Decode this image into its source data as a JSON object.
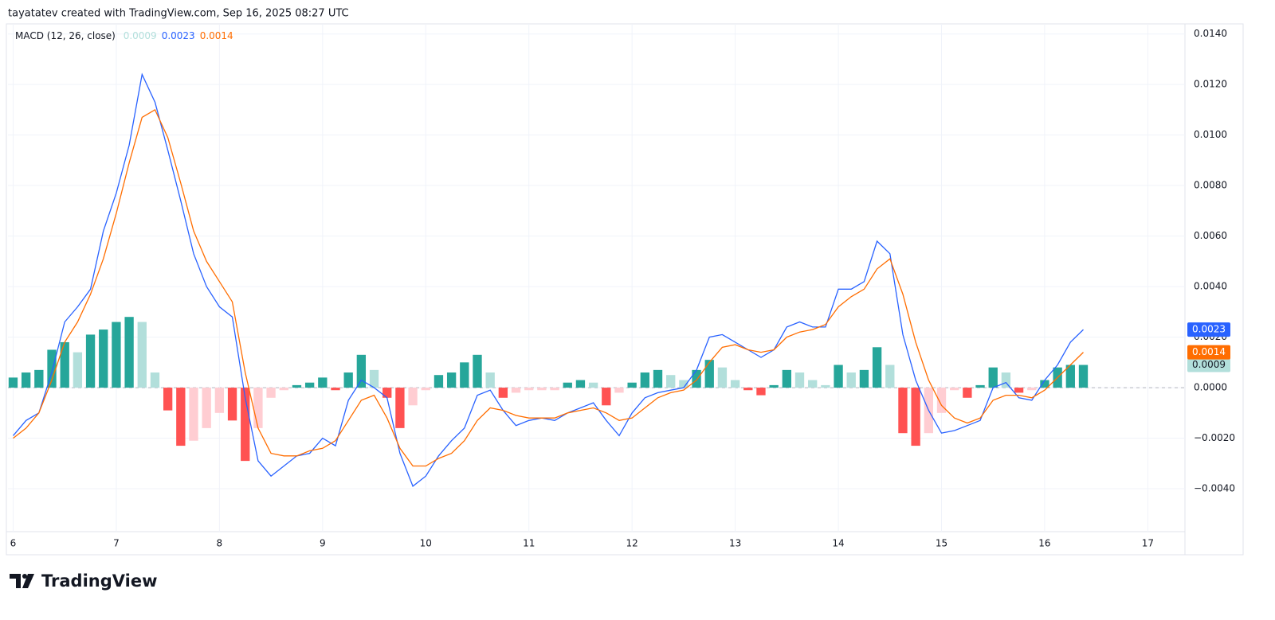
{
  "header": {
    "text": "tayatatev created with TradingView.com, Sep 16, 2025 08:27 UTC"
  },
  "footer": {
    "logo_text": "TradingView"
  },
  "chart_data": {
    "type": "macd",
    "legend_title": "MACD (12, 26, close)",
    "xlim": [
      5.95,
      17.36
    ],
    "xticks": [
      6,
      7,
      8,
      9,
      10,
      11,
      12,
      13,
      14,
      15,
      16,
      17
    ],
    "ylim": [
      -0.0057,
      0.0144
    ],
    "yticks": [
      {
        "value": 0.014,
        "label": "0.0140"
      },
      {
        "value": 0.012,
        "label": "0.0120"
      },
      {
        "value": 0.01,
        "label": "0.0100"
      },
      {
        "value": 0.008,
        "label": "0.0080"
      },
      {
        "value": 0.006,
        "label": "0.0060"
      },
      {
        "value": 0.004,
        "label": "0.0040"
      },
      {
        "value": 0.002,
        "label": "0.0020"
      },
      {
        "value": 0,
        "label": "0.0000"
      },
      {
        "value": -0.002,
        "label": "−0.0020"
      },
      {
        "value": -0.004,
        "label": "−0.0040"
      }
    ],
    "grid": true,
    "x": [
      6,
      6.125,
      6.25,
      6.375,
      6.5,
      6.625,
      6.75,
      6.875,
      7,
      7.125,
      7.25,
      7.375,
      7.5,
      7.625,
      7.75,
      7.875,
      8,
      8.125,
      8.25,
      8.375,
      8.5,
      8.625,
      8.75,
      8.875,
      9,
      9.125,
      9.25,
      9.375,
      9.5,
      9.625,
      9.75,
      9.875,
      10,
      10.125,
      10.25,
      10.375,
      10.5,
      10.625,
      10.75,
      10.875,
      11,
      11.125,
      11.25,
      11.375,
      11.5,
      11.625,
      11.75,
      11.875,
      12,
      12.125,
      12.25,
      12.375,
      12.5,
      12.625,
      12.75,
      12.875,
      13,
      13.125,
      13.25,
      13.375,
      13.5,
      13.625,
      13.75,
      13.875,
      14,
      14.125,
      14.25,
      14.375,
      14.5,
      14.625,
      14.75,
      14.875,
      15,
      15.125,
      15.25,
      15.375,
      15.5,
      15.625,
      15.75,
      15.875,
      16,
      16.125,
      16.25,
      16.375
    ],
    "series": [
      {
        "type": "bar",
        "color": "#b2dfdb",
        "colors": [
          "#26a69a",
          "#b2dfdb",
          "#ffcdd2",
          "#ff5252"
        ],
        "values": [
          0.0004,
          0.0006,
          0.0007,
          0.0015,
          0.0018,
          0.0014,
          0.0021,
          0.0023,
          0.0026,
          0.0028,
          0.0026,
          0.0006,
          -0.0009,
          -0.0023,
          -0.0021,
          -0.0016,
          -0.001,
          -0.0013,
          -0.0029,
          -0.0016,
          -0.0004,
          -0.0001,
          0.0001,
          0.0002,
          0.0004,
          -0.0001,
          0.0006,
          0.0013,
          0.0007,
          -0.0004,
          -0.0016,
          -0.0007,
          -0.0001,
          0.0005,
          0.0006,
          0.001,
          0.0013,
          0.0006,
          -0.0004,
          -0.0002,
          -0.0001,
          -0.0001,
          -0.0001,
          0.0002,
          0.0003,
          0.0002,
          -0.0007,
          -0.0002,
          0.0002,
          0.0006,
          0.0007,
          0.0005,
          0.0003,
          0.0007,
          0.0011,
          0.0008,
          0.0003,
          -0.0001,
          -0.0003,
          0.0001,
          0.0007,
          0.0006,
          0.0003,
          0.0001,
          0.0009,
          0.0006,
          0.0007,
          0.0016,
          0.0009,
          -0.0018,
          -0.0023,
          -0.0018,
          -0.001,
          -0.0001,
          -0.0004,
          0.0001,
          0.0008,
          0.0006,
          -0.0002,
          -0.0001,
          0.0003,
          0.0008,
          0.0009,
          0.0009
        ]
      },
      {
        "type": "line",
        "color": "#2962ff",
        "values": [
          -0.0019,
          -0.0013,
          -0.001,
          0.0006,
          0.0026,
          0.0032,
          0.0039,
          0.0062,
          0.0077,
          0.0096,
          0.0124,
          0.0113,
          0.0094,
          0.0074,
          0.0053,
          0.004,
          0.0032,
          0.0028,
          -0.0004,
          -0.0029,
          -0.0035,
          -0.0031,
          -0.0027,
          -0.0026,
          -0.002,
          -0.0023,
          -0.0005,
          0.0003,
          0,
          -0.0004,
          -0.0026,
          -0.0039,
          -0.0035,
          -0.0027,
          -0.0021,
          -0.0016,
          -0.0003,
          -0.0001,
          -0.0009,
          -0.0015,
          -0.0013,
          -0.0012,
          -0.0013,
          -0.001,
          -0.0008,
          -0.0006,
          -0.0013,
          -0.0019,
          -0.001,
          -0.0004,
          -0.0002,
          -0.0001,
          0,
          0.0007,
          0.002,
          0.0021,
          0.0018,
          0.0015,
          0.0012,
          0.0015,
          0.0024,
          0.0026,
          0.0024,
          0.0024,
          0.0039,
          0.0039,
          0.0042,
          0.0058,
          0.0053,
          0.0021,
          0.0003,
          -0.0009,
          -0.0018,
          -0.0017,
          -0.0015,
          -0.0013,
          0,
          0.0002,
          -0.0004,
          -0.0005,
          0.0003,
          0.0009,
          0.0018,
          0.0023
        ]
      },
      {
        "type": "line",
        "color": "#ff6d00",
        "values": [
          -0.002,
          -0.0016,
          -0.001,
          0.0003,
          0.0018,
          0.0026,
          0.0037,
          0.0051,
          0.0069,
          0.0089,
          0.0107,
          0.011,
          0.0099,
          0.0081,
          0.0062,
          0.005,
          0.0042,
          0.0034,
          0.0006,
          -0.0016,
          -0.0026,
          -0.0027,
          -0.0027,
          -0.0025,
          -0.0024,
          -0.0021,
          -0.0013,
          -0.0005,
          -0.0003,
          -0.0012,
          -0.0024,
          -0.0031,
          -0.0031,
          -0.0028,
          -0.0026,
          -0.0021,
          -0.0013,
          -0.0008,
          -0.0009,
          -0.0011,
          -0.0012,
          -0.0012,
          -0.0012,
          -0.001,
          -0.0009,
          -0.0008,
          -0.001,
          -0.0013,
          -0.0012,
          -0.0008,
          -0.0004,
          -0.0002,
          -0.0001,
          0.0003,
          0.001,
          0.0016,
          0.0017,
          0.0015,
          0.0014,
          0.0015,
          0.002,
          0.0022,
          0.0023,
          0.0025,
          0.0032,
          0.0036,
          0.0039,
          0.0047,
          0.0051,
          0.0037,
          0.0018,
          0.0003,
          -0.0007,
          -0.0012,
          -0.0014,
          -0.0012,
          -0.0005,
          -0.0003,
          -0.0003,
          -0.0004,
          -0.0001,
          0.0004,
          0.0009,
          0.0014
        ]
      }
    ]
  }
}
